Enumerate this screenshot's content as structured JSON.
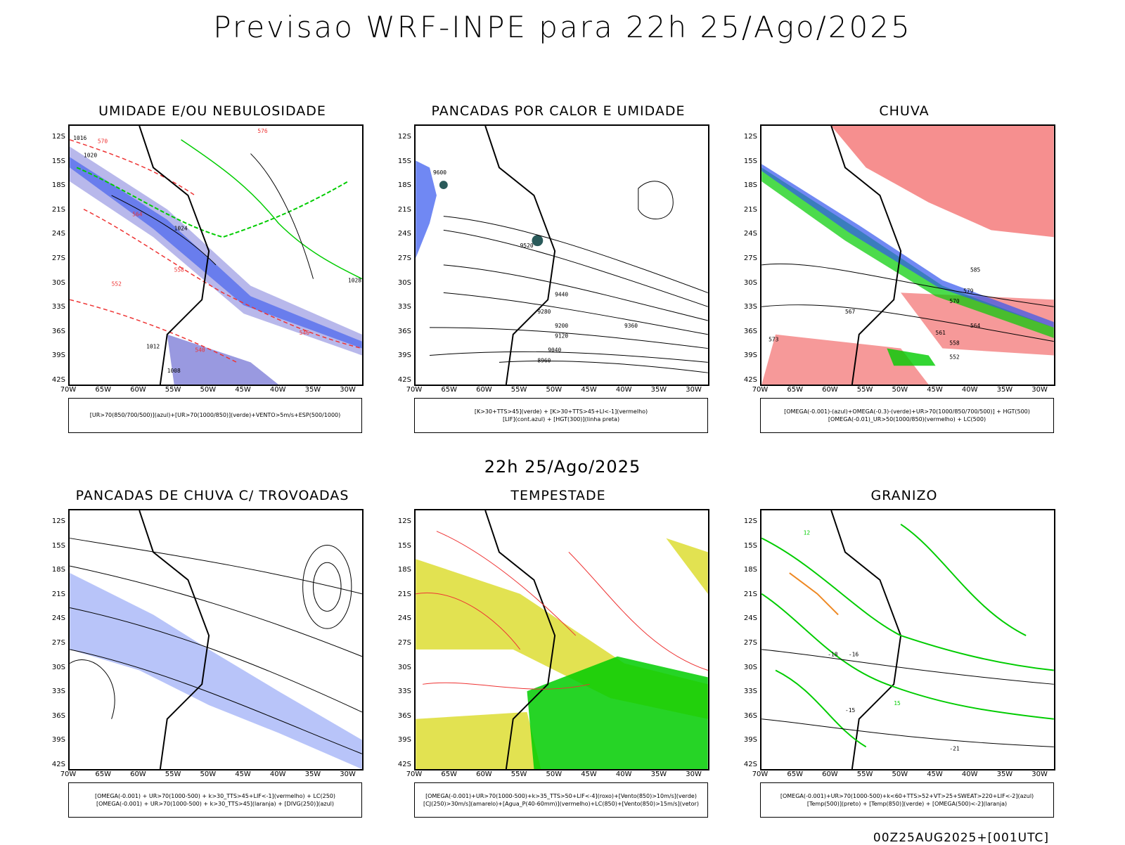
{
  "header": {
    "title": "Previsao WRF-INPE  para 22h 25/Ago/2025",
    "subtitle": "22h 25/Ago/2025",
    "footer": "00Z25AUG2025+[001UTC]"
  },
  "axes": {
    "lat_labels": [
      "12S",
      "15S",
      "18S",
      "21S",
      "24S",
      "27S",
      "30S",
      "33S",
      "36S",
      "39S",
      "42S"
    ],
    "lon_labels": [
      "70W",
      "65W",
      "60W",
      "55W",
      "50W",
      "45W",
      "40W",
      "35W",
      "30W"
    ]
  },
  "panels": [
    {
      "title": "UMIDADE E/OU NEBULOSIDADE",
      "legend": [
        "[UR>70(850/700/500)](azul)+[UR>70(1000/850)](verde)+VENTO>5m/s+ESP(500/1000)"
      ]
    },
    {
      "title": "PANCADAS POR CALOR E UMIDADE",
      "legend": [
        "[K>30+TTS>45](verde) + [K>30+TTS>45+LI<-1](vermelho)",
        "[LIF](cont.azul) + [HGT(300)](linha preta)"
      ]
    },
    {
      "title": "CHUVA",
      "legend": [
        "[OMEGA(-0.001)-(azul)+OMEGA(-0.3)-(verde)+UR>70(1000/850/700/500)] + HGT(500)",
        "[OMEGA(-0.01)_UR>50(1000/850)(vermelho) + LC(500)"
      ]
    },
    {
      "title": "PANCADAS DE CHUVA C/ TROVOADAS",
      "legend": [
        "[OMEGA(-0.001) + UR>70(1000-500) + k>30_TTS>45+LIF<-1](vermelho) + LC(250)",
        "[OMEGA(-0.001) + UR>70(1000-500) + k>30_TTS>45](laranja) + [DIVG(250)](azul)"
      ]
    },
    {
      "title": "TEMPESTADE",
      "legend": [
        "[OMEGA(-0.001)+UR>70(1000-500)+k>35_TTS>50+LIF<-4](roxo)+[Vento(850)>10m/s](verde)",
        "[CJ(250)>30m/s](amarelo)+[Agua_P(40-60mm)](vermelho)+LC(850)+[Vento(850)>15m/s](vetor)"
      ]
    },
    {
      "title": "GRANIZO",
      "legend": [
        "[OMEGA(-0.001)+UR>70(1000-500)+k<60+TTS>52+VT>25+SWEAT>220+LIF<-2](azul)",
        "[Temp(500)](preto) + [Temp(850)](verde) + [OMEGA(500)<-2](laranja)"
      ]
    }
  ],
  "contour_labels": {
    "p1": [
      "1016",
      "1020",
      "1024",
      "1028",
      "1012",
      "1008",
      "570",
      "564",
      "558",
      "552",
      "546",
      "540",
      "576"
    ],
    "p2": [
      "9600",
      "9520",
      "9440",
      "9360",
      "9280",
      "9200",
      "9120",
      "9040",
      "8960"
    ],
    "p3": [
      "573",
      "570",
      "567",
      "564",
      "561",
      "558",
      "552",
      "579",
      "585"
    ],
    "p6": [
      "-18",
      "-16",
      "-15",
      "-21",
      "12",
      "15"
    ]
  },
  "colors": {
    "blue": "#3355ee",
    "green": "#00cc00",
    "red": "#ee3333",
    "yellow": "#dddd33",
    "orange": "#ee8822",
    "purple": "#8888dd",
    "teal": "#2a5a5a"
  }
}
